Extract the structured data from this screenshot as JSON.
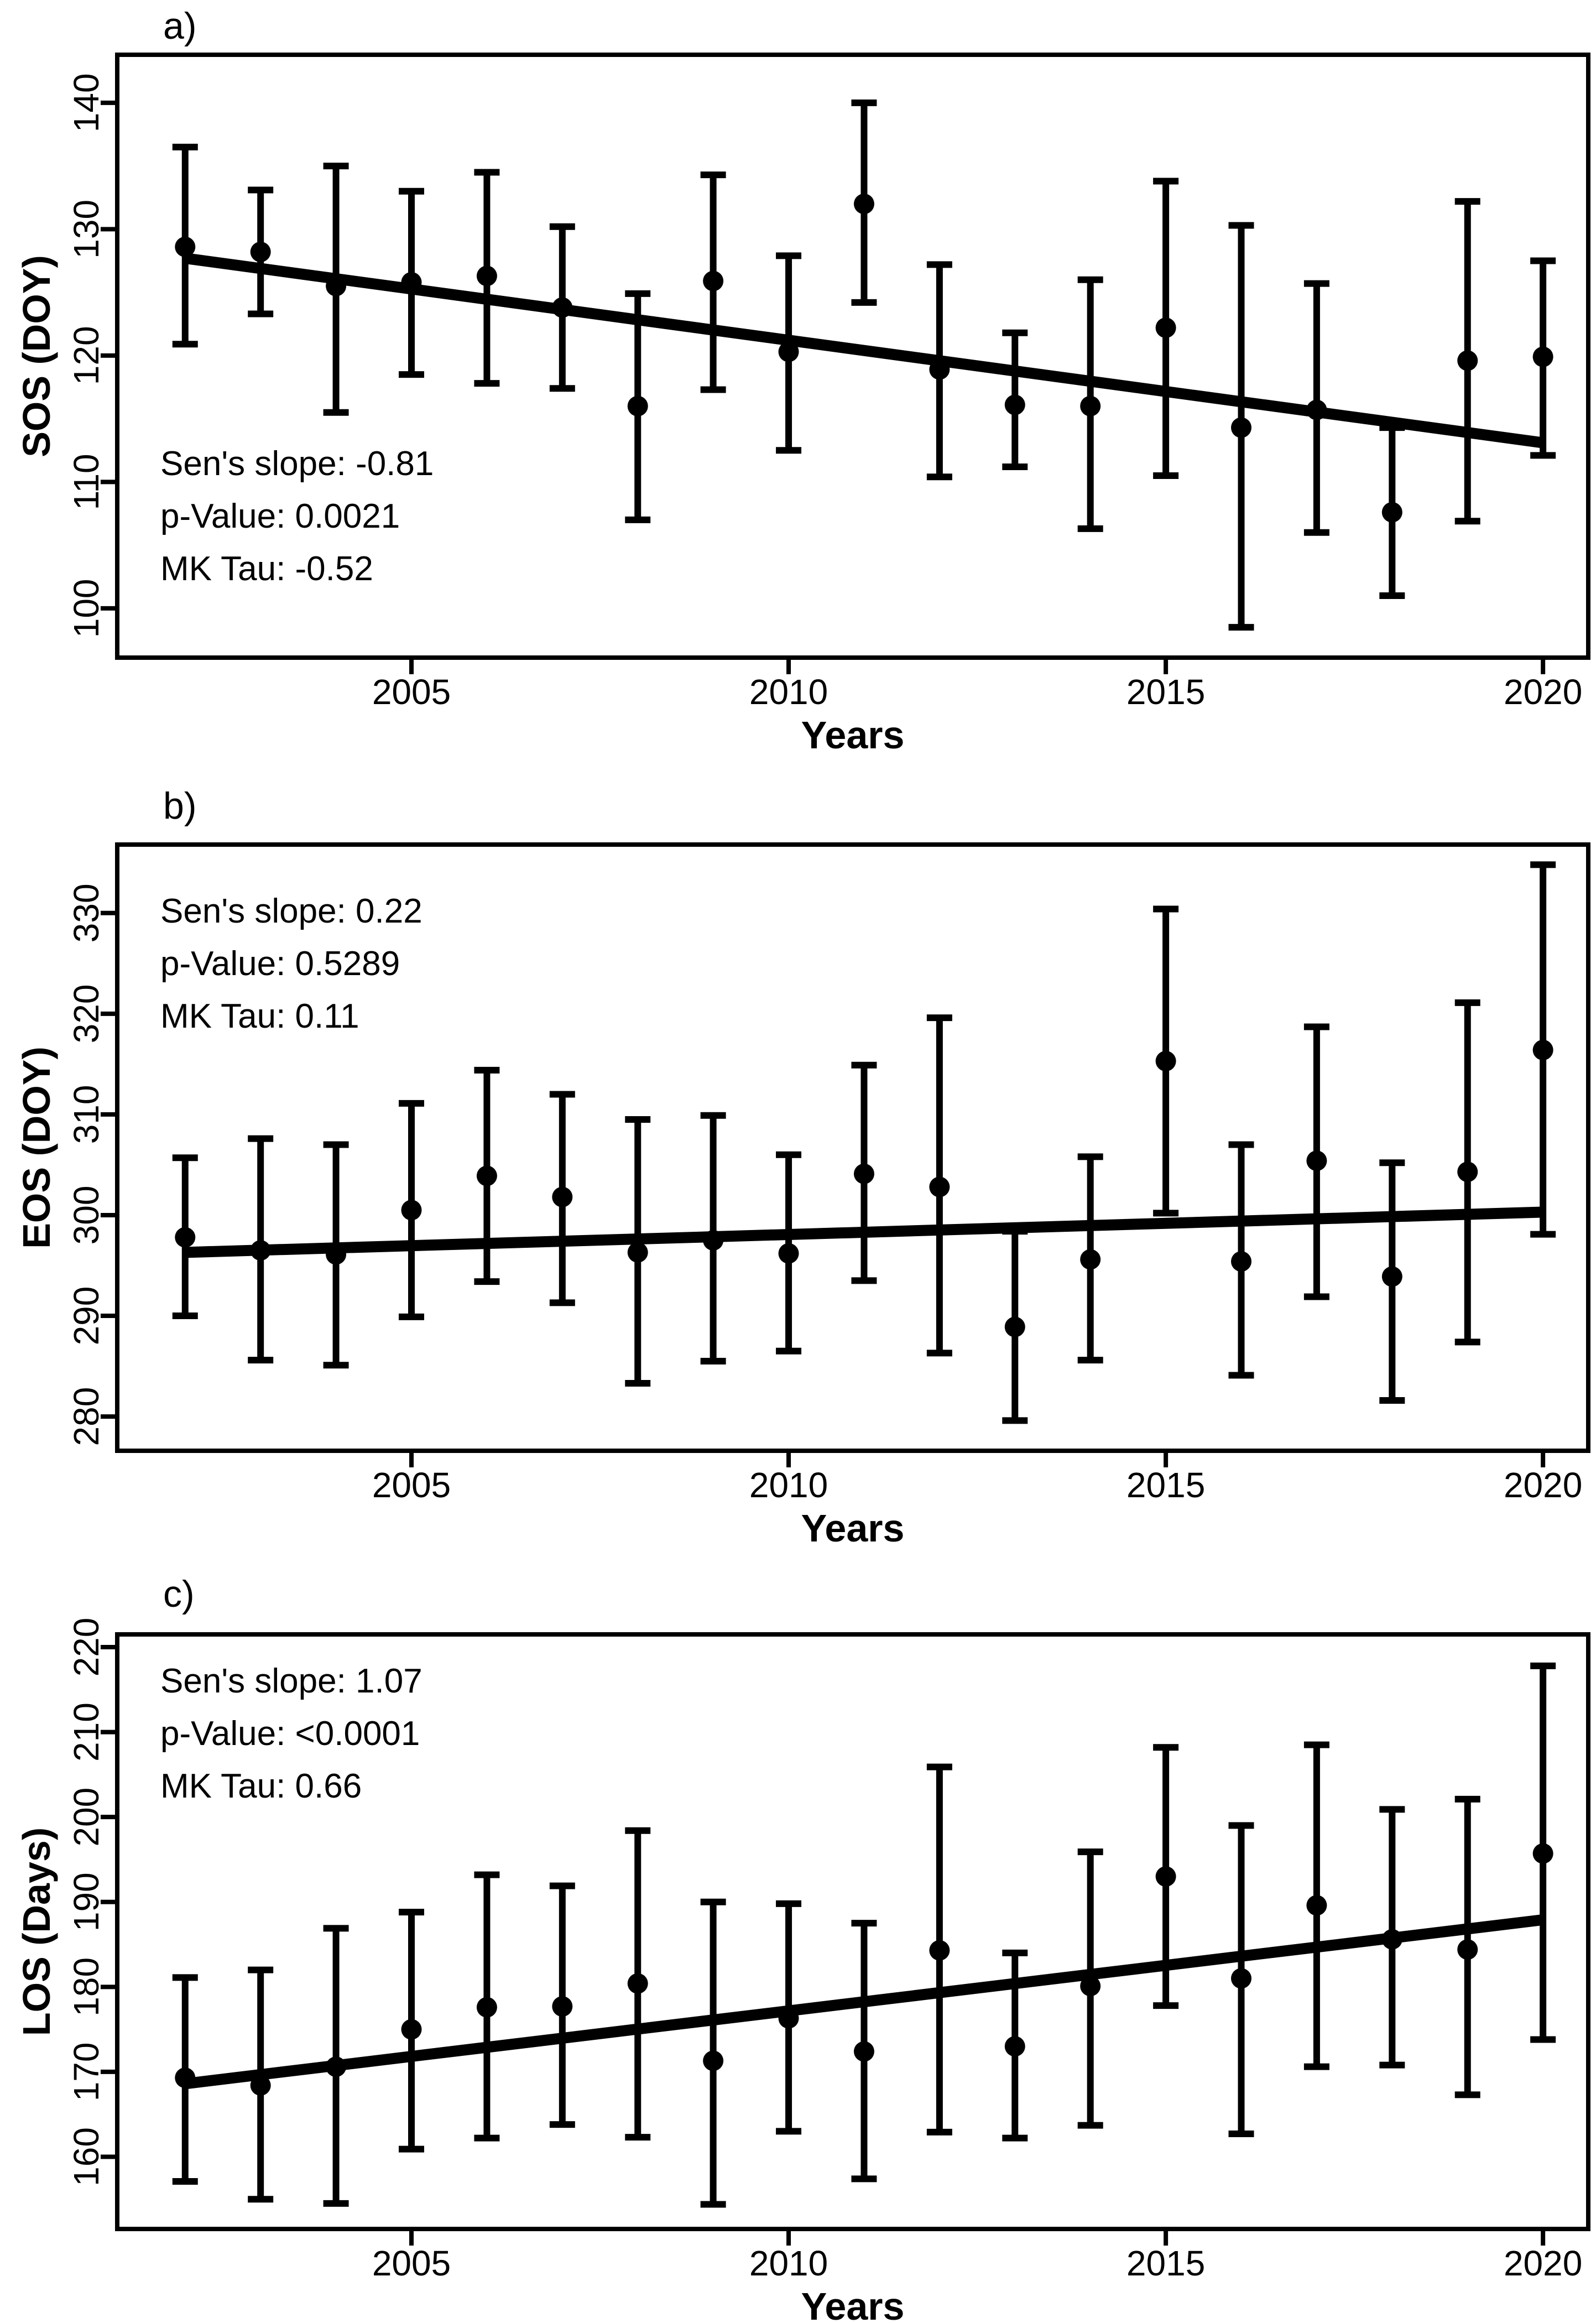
{
  "figure": {
    "background": "#ffffff",
    "foreground": "#000000",
    "description": "Three stacked phenology trend panels with yearly means, confidence interval error bars and Sen's slope trend lines"
  },
  "chart_data": [
    {
      "type": "scatter",
      "panel_label": "a)",
      "title": "",
      "xlabel": "Years",
      "ylabel": "SOS (DOY)",
      "x_ticks": [
        2005,
        2010,
        2015,
        2020
      ],
      "y_ticks": [
        100,
        110,
        120,
        130,
        140
      ],
      "xlim": [
        2001.1,
        2020.6
      ],
      "ylim": [
        96.1,
        143.8
      ],
      "legend": "none",
      "grid": false,
      "color": "#000000",
      "x": [
        2002,
        2003,
        2004,
        2005,
        2006,
        2007,
        2008,
        2009,
        2010,
        2011,
        2012,
        2013,
        2014,
        2015,
        2016,
        2017,
        2018,
        2019,
        2020
      ],
      "values": [
        128.6,
        128.2,
        125.5,
        125.8,
        126.3,
        123.8,
        116.0,
        125.9,
        120.3,
        132.0,
        118.9,
        116.1,
        116.0,
        122.2,
        114.3,
        115.7,
        107.6,
        119.6,
        119.9
      ],
      "ci_low": [
        120.9,
        123.3,
        115.5,
        118.5,
        117.8,
        117.4,
        107.0,
        117.3,
        112.5,
        124.2,
        110.4,
        111.2,
        106.3,
        110.5,
        98.5,
        106.0,
        101.0,
        106.9,
        112.1
      ],
      "ci_high": [
        136.5,
        133.1,
        135.0,
        133.0,
        134.5,
        130.2,
        124.9,
        134.3,
        127.9,
        140.0,
        127.2,
        121.8,
        126.0,
        133.8,
        130.3,
        125.7,
        114.3,
        132.2,
        127.5
      ],
      "trend": {
        "x": [
          2002,
          2020
        ],
        "y": [
          127.7,
          113.1
        ]
      },
      "stats": [
        "Sen's slope: -0.81",
        "p-Value: 0.0021",
        "MK Tau: -0.52"
      ],
      "stats_corner": "bottom-left"
    },
    {
      "type": "scatter",
      "panel_label": "b)",
      "title": "",
      "xlabel": "Years",
      "ylabel": "EOS (DOY)",
      "x_ticks": [
        2005,
        2010,
        2015,
        2020
      ],
      "y_ticks": [
        280,
        290,
        300,
        310,
        320,
        330
      ],
      "xlim": [
        2001.1,
        2020.6
      ],
      "ylim": [
        276.6,
        336.8
      ],
      "legend": "none",
      "grid": false,
      "color": "#000000",
      "x": [
        2002,
        2003,
        2004,
        2005,
        2006,
        2007,
        2008,
        2009,
        2010,
        2011,
        2012,
        2013,
        2014,
        2015,
        2016,
        2017,
        2018,
        2019,
        2020
      ],
      "values": [
        297.8,
        296.5,
        296.1,
        300.5,
        303.9,
        301.8,
        296.3,
        297.5,
        296.2,
        304.1,
        302.8,
        288.9,
        295.6,
        315.3,
        295.4,
        305.4,
        293.9,
        304.3,
        316.4
      ],
      "ci_low": [
        290.0,
        285.6,
        285.1,
        289.9,
        293.4,
        291.3,
        283.3,
        285.5,
        286.5,
        293.5,
        286.3,
        279.6,
        285.6,
        300.2,
        284.1,
        291.9,
        281.6,
        287.4,
        298.1
      ],
      "ci_high": [
        305.7,
        307.6,
        307.0,
        311.1,
        314.4,
        312.0,
        309.5,
        309.9,
        306.0,
        314.9,
        319.6,
        298.4,
        305.8,
        330.4,
        307.0,
        318.7,
        305.2,
        321.1,
        334.8
      ],
      "trend": {
        "x": [
          2002,
          2020
        ],
        "y": [
          296.3,
          300.3
        ]
      },
      "stats": [
        "Sen's slope: 0.22",
        "p-Value: 0.5289",
        "MK Tau: 0.11"
      ],
      "stats_corner": "top-left"
    },
    {
      "type": "scatter",
      "panel_label": "c)",
      "title": "",
      "xlabel": "Years",
      "ylabel": "LOS (Days)",
      "x_ticks": [
        2005,
        2010,
        2015,
        2020
      ],
      "y_ticks": [
        160,
        170,
        180,
        190,
        200,
        210,
        220
      ],
      "xlim": [
        2001.1,
        2020.6
      ],
      "ylim": [
        151.5,
        221.5
      ],
      "legend": "none",
      "grid": false,
      "color": "#000000",
      "x": [
        2002,
        2003,
        2004,
        2005,
        2006,
        2007,
        2008,
        2009,
        2010,
        2011,
        2012,
        2013,
        2014,
        2015,
        2016,
        2017,
        2018,
        2019,
        2020
      ],
      "values": [
        169.3,
        168.4,
        170.6,
        175.0,
        177.6,
        177.7,
        180.4,
        171.3,
        176.3,
        172.4,
        184.3,
        173.0,
        180.1,
        193.0,
        181.0,
        189.6,
        185.6,
        184.4,
        195.7
      ],
      "ci_low": [
        157.1,
        155.0,
        154.5,
        160.9,
        162.2,
        163.8,
        162.3,
        154.4,
        163.0,
        157.4,
        162.9,
        162.2,
        163.7,
        177.8,
        162.7,
        170.6,
        170.8,
        167.3,
        173.8
      ],
      "ci_high": [
        181.1,
        182.0,
        186.9,
        188.8,
        193.2,
        191.9,
        198.4,
        190.0,
        189.8,
        187.5,
        205.9,
        184.0,
        195.9,
        208.2,
        199.0,
        208.5,
        200.9,
        202.1,
        217.8
      ],
      "trend": {
        "x": [
          2002,
          2020
        ],
        "y": [
          168.6,
          187.9
        ]
      },
      "stats": [
        "Sen's slope: 1.07",
        "p-Value: <0.0001",
        "MK Tau: 0.66"
      ],
      "stats_corner": "top-left"
    }
  ]
}
